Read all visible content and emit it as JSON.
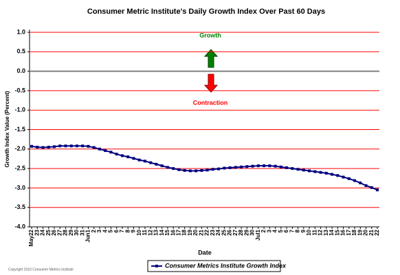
{
  "chart_data": {
    "type": "line",
    "title": "Consumer Metric Institute's Daily Growth Index Over Past 60 Days",
    "xlabel": "Date",
    "ylabel": "Growth Index Value (Percent)",
    "annotations": [
      {
        "text": "Growth",
        "color": "#008000"
      },
      {
        "text": "Contraction",
        "color": "#ff0000"
      }
    ],
    "copyright": "Copyright 2010 Consumer Metrics Institute",
    "categories": [
      "May22",
      "23",
      "24",
      "25",
      "26",
      "27",
      "28",
      "29",
      "30",
      "31",
      "Jun1",
      "2",
      "3",
      "4",
      "5",
      "6",
      "7",
      "8",
      "9",
      "10",
      "11",
      "12",
      "13",
      "14",
      "15",
      "16",
      "17",
      "18",
      "19",
      "20",
      "21",
      "22",
      "23",
      "24",
      "25",
      "26",
      "27",
      "28",
      "29",
      "30",
      "Jul1",
      "2",
      "3",
      "4",
      "5",
      "6",
      "7",
      "8",
      "9",
      "10",
      "11",
      "12",
      "13",
      "14",
      "15",
      "16",
      "17",
      "18",
      "19",
      "20",
      "21",
      "22"
    ],
    "series": [
      {
        "name": "Consumer Metrics Institute Growth Index",
        "color": "#000080",
        "values": [
          -1.93,
          -1.95,
          -1.96,
          -1.95,
          -1.94,
          -1.92,
          -1.92,
          -1.92,
          -1.92,
          -1.92,
          -1.93,
          -1.96,
          -2.0,
          -2.04,
          -2.08,
          -2.13,
          -2.17,
          -2.2,
          -2.24,
          -2.28,
          -2.31,
          -2.35,
          -2.39,
          -2.43,
          -2.47,
          -2.5,
          -2.53,
          -2.55,
          -2.56,
          -2.56,
          -2.55,
          -2.54,
          -2.52,
          -2.51,
          -2.49,
          -2.48,
          -2.47,
          -2.46,
          -2.45,
          -2.44,
          -2.43,
          -2.43,
          -2.43,
          -2.44,
          -2.46,
          -2.48,
          -2.5,
          -2.52,
          -2.54,
          -2.56,
          -2.58,
          -2.6,
          -2.62,
          -2.65,
          -2.68,
          -2.72,
          -2.76,
          -2.81,
          -2.87,
          -2.94,
          -2.99,
          -3.05
        ]
      }
    ],
    "ylim": [
      -4,
      1
    ],
    "yticks": [
      {
        "value": -4,
        "label": "-4.0"
      },
      {
        "value": -3.5,
        "label": "-3.5"
      },
      {
        "value": -3,
        "label": "-3.0"
      },
      {
        "value": -2.5,
        "label": "-2.5"
      },
      {
        "value": -2,
        "label": "-2.0"
      },
      {
        "value": -1.5,
        "label": "-1.5"
      },
      {
        "value": -1,
        "label": "-1.0"
      },
      {
        "value": -0.5,
        "label": "-0.5"
      },
      {
        "value": 0,
        "label": "0.0"
      },
      {
        "value": 0.5,
        "label": "0.5"
      },
      {
        "value": 1,
        "label": "1.0"
      }
    ],
    "grid": true,
    "grid_color": "#ff0000",
    "zero_line_color": "#808080",
    "legend": "bottom"
  }
}
